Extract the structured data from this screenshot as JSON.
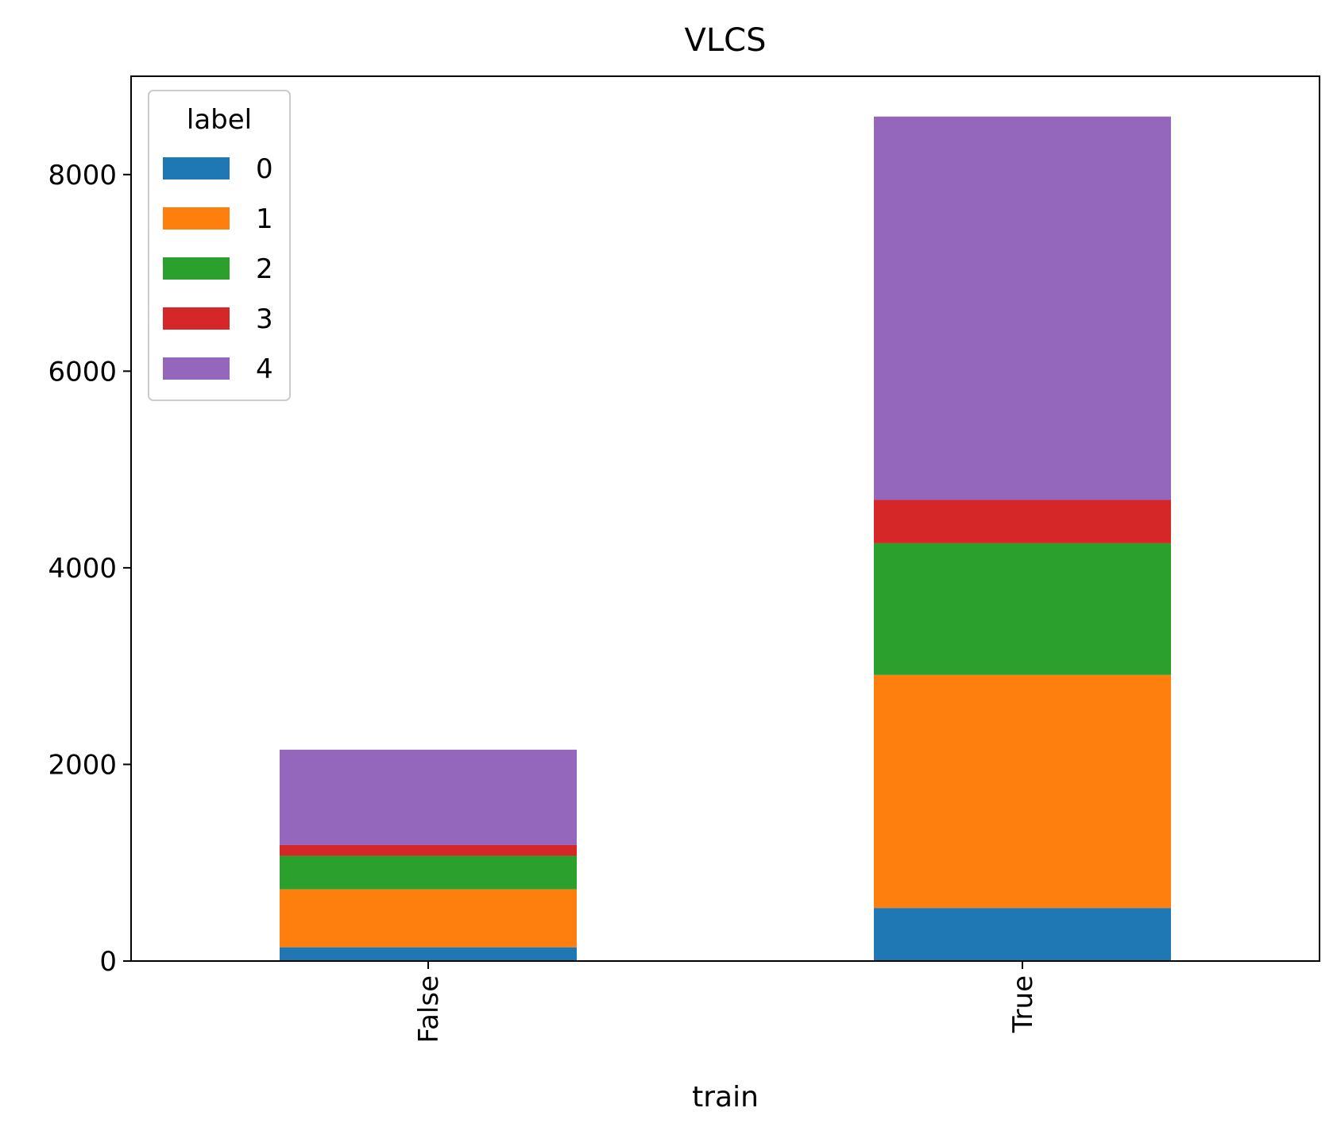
{
  "chart_data": {
    "type": "bar",
    "stacked": true,
    "title": "VLCS",
    "xlabel": "train",
    "ylabel": "",
    "categories": [
      "False",
      "True"
    ],
    "ylim": [
      0,
      9000
    ],
    "yticks": [
      0,
      2000,
      4000,
      6000,
      8000
    ],
    "legend": {
      "title": "label",
      "position": "top-left"
    },
    "series": [
      {
        "name": "0",
        "color": "#1f77b4",
        "values": [
          140,
          540
        ]
      },
      {
        "name": "1",
        "color": "#ff7f0e",
        "values": [
          590,
          2370
        ]
      },
      {
        "name": "2",
        "color": "#2ca02c",
        "values": [
          340,
          1340
        ]
      },
      {
        "name": "3",
        "color": "#d62728",
        "values": [
          110,
          440
        ]
      },
      {
        "name": "4",
        "color": "#9467bd",
        "values": [
          970,
          3900
        ]
      }
    ]
  }
}
